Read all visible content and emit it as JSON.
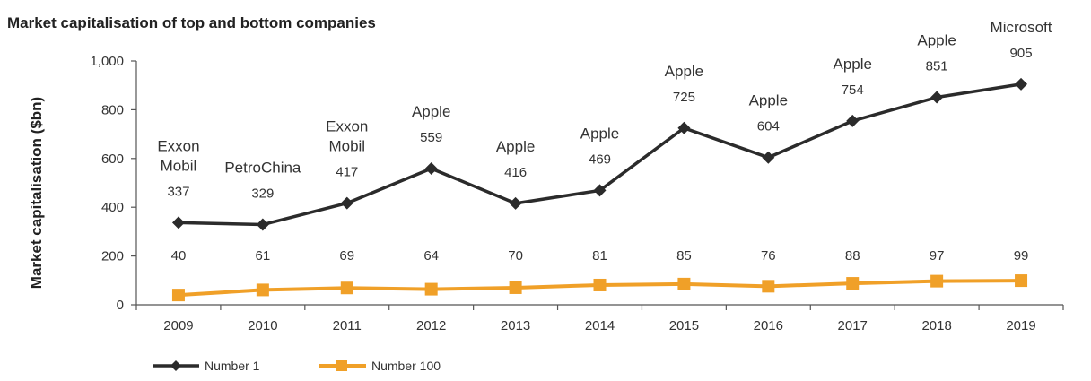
{
  "chart_data": {
    "type": "line",
    "title": "Market capitalisation of top and bottom companies",
    "ylabel": "Market capitalisation ($bn)",
    "xlabel": "",
    "ylim": [
      0,
      1000
    ],
    "yticks": [
      "1,000",
      "800",
      "600",
      "400",
      "200",
      "0"
    ],
    "ytick_values": [
      1000,
      800,
      600,
      400,
      200,
      0
    ],
    "categories": [
      "2009",
      "2010",
      "2011",
      "2012",
      "2013",
      "2014",
      "2015",
      "2016",
      "2017",
      "2018",
      "2019"
    ],
    "grid": false,
    "legend_position": "bottom-left",
    "series": [
      {
        "name": "Number 1",
        "color": "#2b2b2b",
        "marker": "diamond",
        "values": [
          337,
          329,
          417,
          559,
          416,
          469,
          725,
          604,
          754,
          851,
          905
        ],
        "labels": [
          "337",
          "329",
          "417",
          "559",
          "416",
          "469",
          "725",
          "604",
          "754",
          "851",
          "905"
        ],
        "companies": [
          "Exxon Mobil",
          "PetroChina",
          "Exxon Mobil",
          "Apple",
          "Apple",
          "Apple",
          "Apple",
          "Apple",
          "Apple",
          "Apple",
          "Microsoft"
        ]
      },
      {
        "name": "Number 100",
        "color": "#f0a028",
        "marker": "square",
        "values": [
          40,
          61,
          69,
          64,
          70,
          81,
          85,
          76,
          88,
          97,
          99
        ],
        "labels": [
          "40",
          "61",
          "69",
          "64",
          "70",
          "81",
          "85",
          "76",
          "88",
          "97",
          "99"
        ]
      }
    ]
  }
}
